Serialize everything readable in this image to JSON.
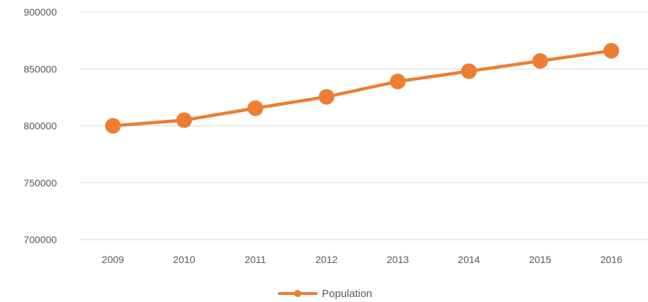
{
  "chart_data": {
    "type": "line",
    "title": "",
    "xlabel": "",
    "ylabel": "",
    "categories": [
      "2009",
      "2010",
      "2011",
      "2012",
      "2013",
      "2014",
      "2015",
      "2016"
    ],
    "series": [
      {
        "name": "Population",
        "values": [
          800000,
          805000,
          815500,
          825500,
          839000,
          848000,
          857000,
          866000
        ],
        "color": "#ED7D31"
      }
    ],
    "ylim": [
      700000,
      900000
    ],
    "y_ticks": [
      "700000",
      "750000",
      "800000",
      "850000",
      "900000"
    ],
    "grid": true,
    "gridline_color": "#D9D9D9",
    "legend": "bottom-center"
  }
}
